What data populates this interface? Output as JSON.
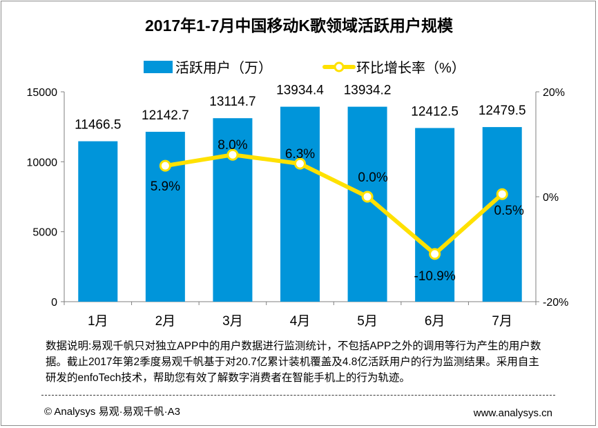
{
  "chart_data": {
    "type": "bar",
    "title": "2017年1-7月中国移动K歌领域活跃用户规模",
    "categories": [
      "1月",
      "2月",
      "3月",
      "4月",
      "5月",
      "6月",
      "7月"
    ],
    "series": [
      {
        "name": "活跃用户（万）",
        "type": "bar",
        "axis": "left",
        "values": [
          11466.5,
          12142.7,
          13114.7,
          13934.4,
          13934.2,
          12412.5,
          12479.5
        ],
        "labels": [
          "11466.5",
          "12142.7",
          "13114.7",
          "13934.4",
          "13934.2",
          "12412.5",
          "12479.5"
        ]
      },
      {
        "name": "环比增长率（%）",
        "type": "line",
        "axis": "right",
        "values": [
          null,
          5.9,
          8.0,
          6.3,
          0.0,
          -10.9,
          0.5
        ],
        "labels": [
          "",
          "5.9%",
          "8.0%",
          "6.3%",
          "0.0%",
          "-10.9%",
          "0.5%"
        ]
      }
    ],
    "y_left": {
      "range": [
        0,
        15000
      ],
      "ticks": [
        "0",
        "5000",
        "10000",
        "15000"
      ]
    },
    "y_right": {
      "range": [
        -20,
        20
      ],
      "ticks": [
        "-20%",
        "0%",
        "20%"
      ]
    },
    "legend": "top",
    "grid": false,
    "colors": {
      "bar": "#0095DA",
      "line": "#FFE100",
      "marker_fill": "#ffffff"
    }
  },
  "note": "数据说明:易观千帆只对独立APP中的用户数据进行监测统计，不包括APP之外的调用等行为产生的用户数据。截止2017年第2季度易观千帆基于对20.7亿累计装机覆盖及4.8亿活跃用户的行为监测结果。采用自主研发的enfoTech技术，帮助您有效了解数字消费者在智能手机上的行为轨迹。",
  "footer": {
    "copyright": "© Analysys 易观·易观千帆·A3",
    "website": "www.analysys.cn"
  }
}
